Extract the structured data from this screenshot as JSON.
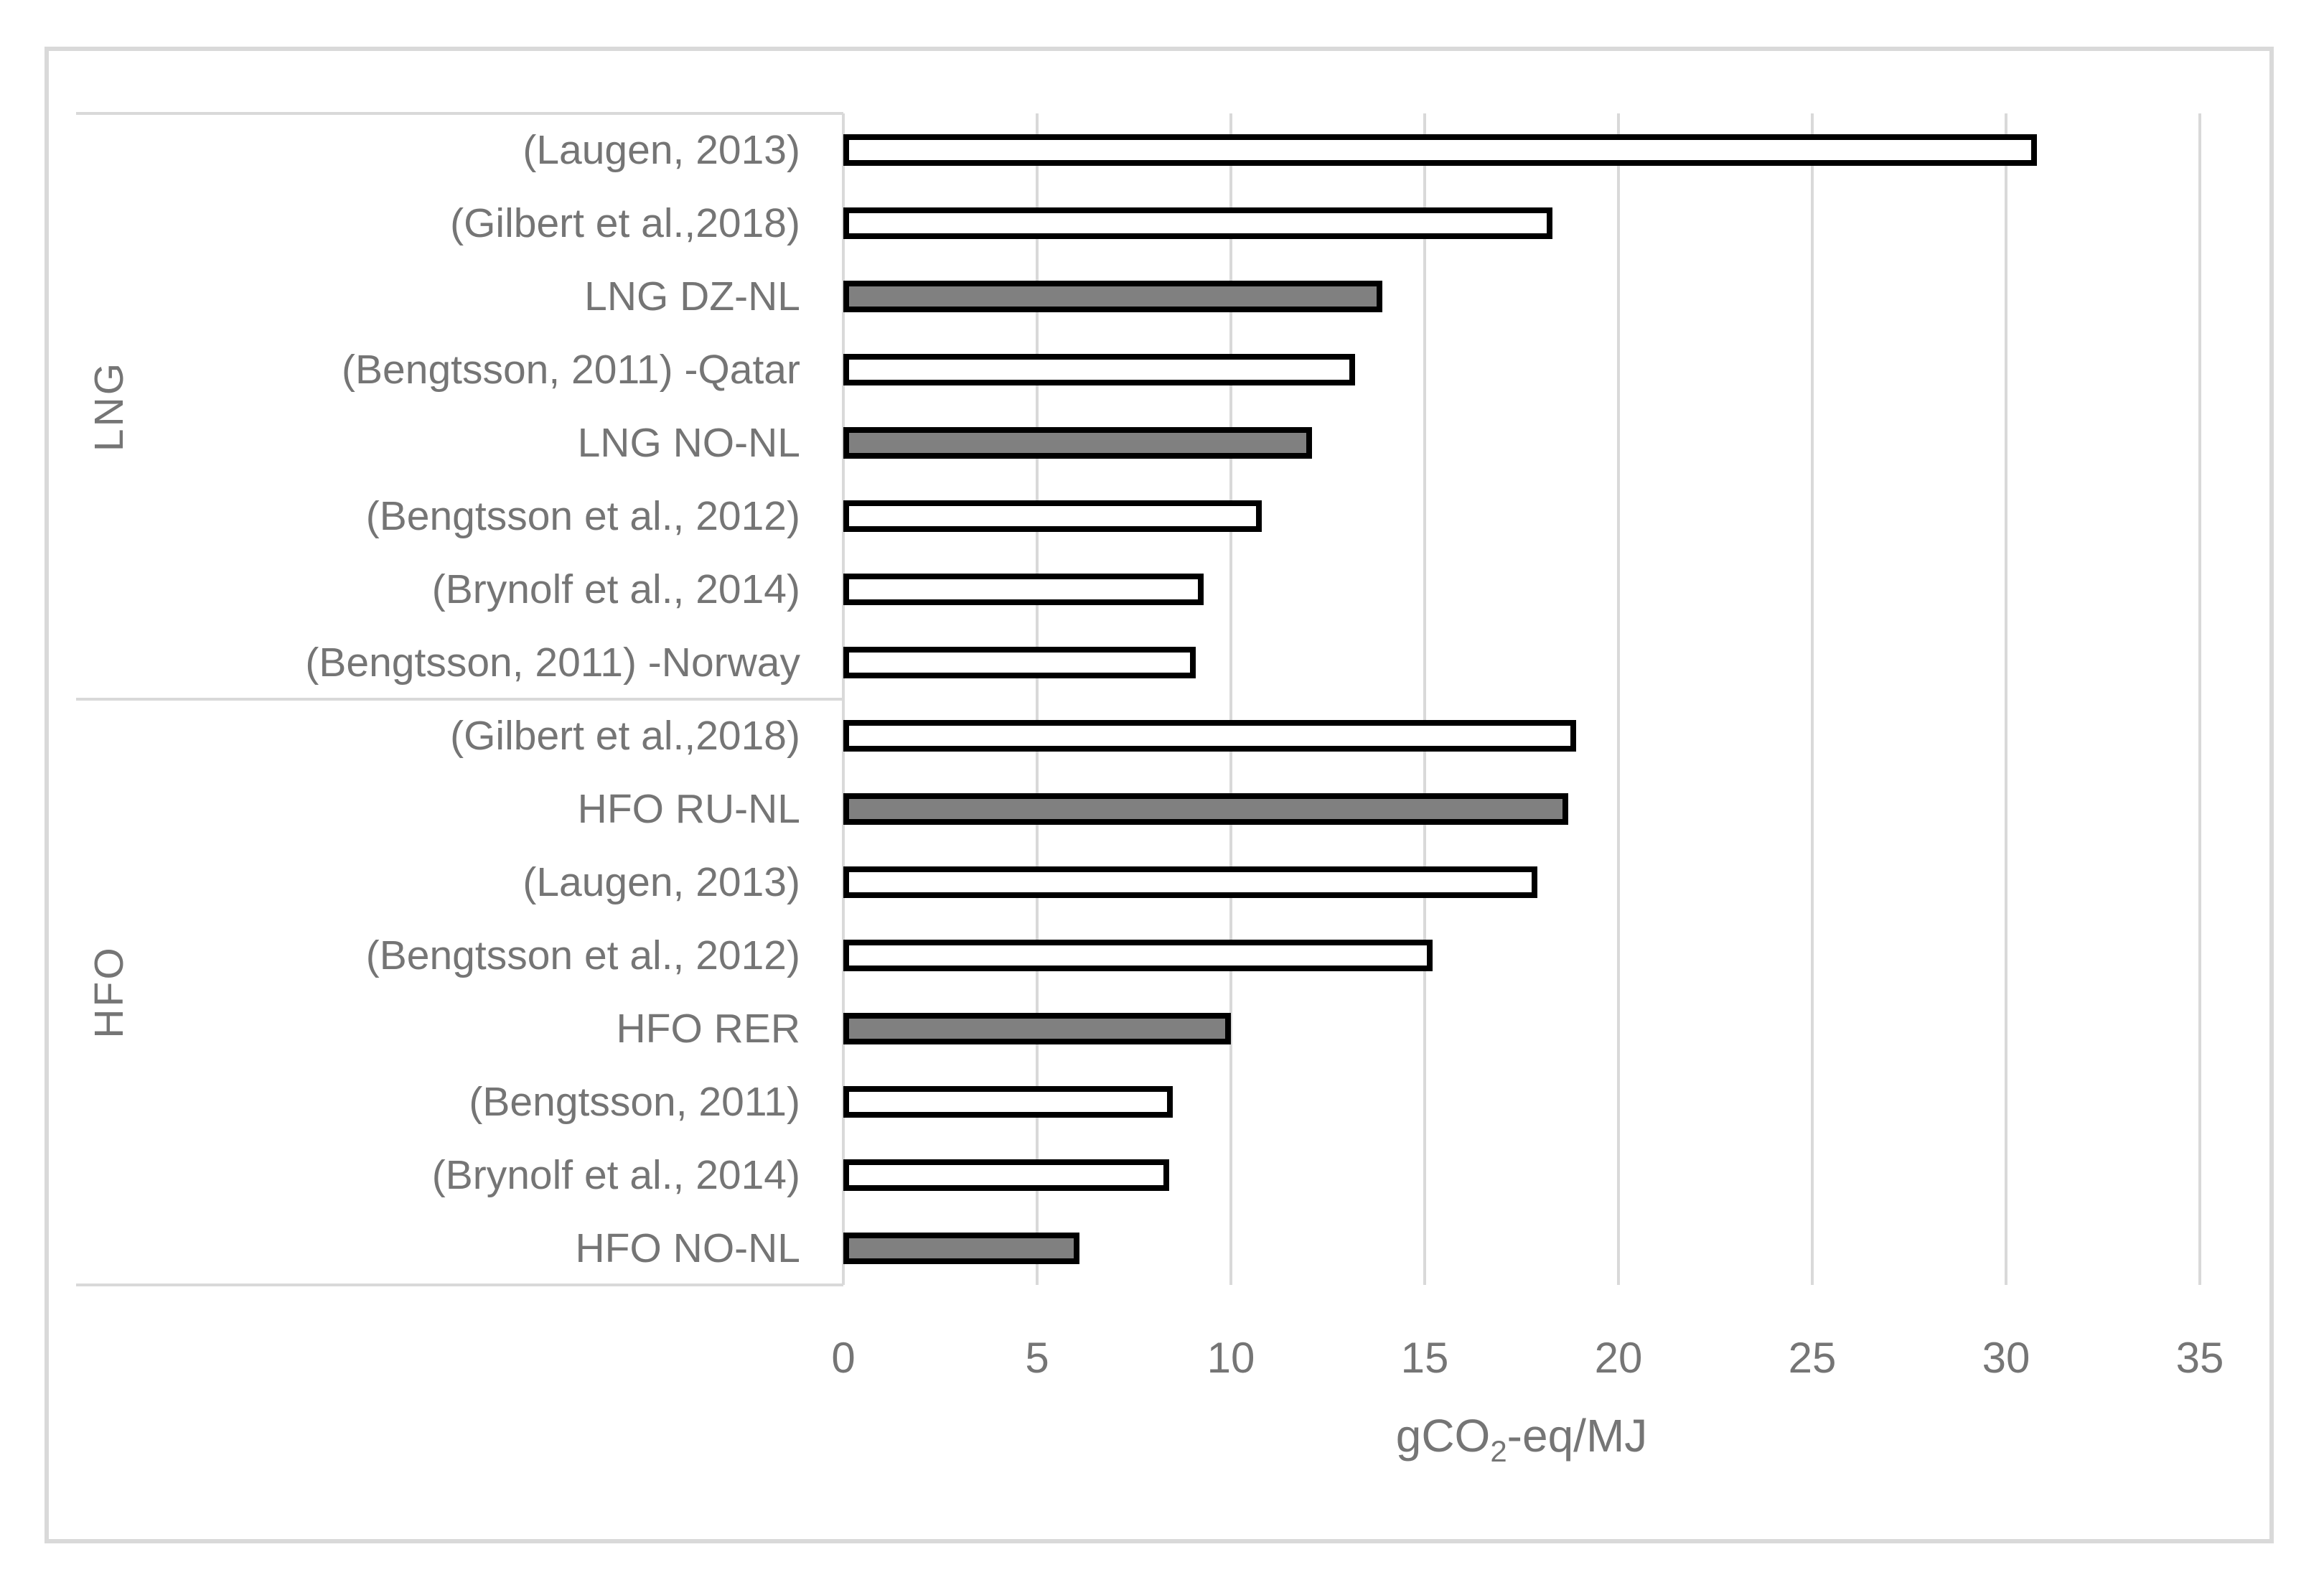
{
  "chart_data": {
    "type": "bar",
    "orientation": "horizontal",
    "title": "",
    "xlabel": "gCO2-eq/MJ",
    "xlabel_parts": {
      "prefix": "gCO",
      "sub": "2",
      "suffix": "-eq/MJ"
    },
    "xlim": [
      0,
      35
    ],
    "xticks": [
      0,
      5,
      10,
      15,
      20,
      25,
      30,
      35
    ],
    "grid": "vertical-gridlines-on",
    "legend": null,
    "groups": [
      {
        "label": "LNG",
        "rows": [
          {
            "label": "(Laugen, 2013)",
            "value": 30.8,
            "highlighted": false
          },
          {
            "label": "(Gilbert et al.,2018)",
            "value": 18.3,
            "highlighted": false
          },
          {
            "label": "LNG DZ-NL",
            "value": 13.9,
            "highlighted": true
          },
          {
            "label": "(Bengtsson, 2011) -Qatar",
            "value": 13.2,
            "highlighted": false
          },
          {
            "label": "LNG NO-NL",
            "value": 12.1,
            "highlighted": true
          },
          {
            "label": "(Bengtsson et al., 2012)",
            "value": 10.8,
            "highlighted": false
          },
          {
            "label": "(Brynolf et al., 2014)",
            "value": 9.3,
            "highlighted": false
          },
          {
            "label": "(Bengtsson, 2011) -Norway",
            "value": 9.1,
            "highlighted": false
          }
        ]
      },
      {
        "label": "HFO",
        "rows": [
          {
            "label": "(Gilbert et al.,2018)",
            "value": 18.9,
            "highlighted": false
          },
          {
            "label": "HFO RU-NL",
            "value": 18.7,
            "highlighted": true
          },
          {
            "label": "(Laugen, 2013)",
            "value": 17.9,
            "highlighted": false
          },
          {
            "label": "(Bengtsson et al., 2012)",
            "value": 15.2,
            "highlighted": false
          },
          {
            "label": "HFO RER",
            "value": 10.0,
            "highlighted": true
          },
          {
            "label": "(Bengtsson, 2011)",
            "value": 8.5,
            "highlighted": false
          },
          {
            "label": "(Brynolf et al., 2014)",
            "value": 8.4,
            "highlighted": false
          },
          {
            "label": "HFO NO-NL",
            "value": 6.1,
            "highlighted": true
          }
        ]
      }
    ],
    "bar_styles": {
      "default_fill": "#ffffff",
      "highlight_fill": "#808080",
      "border": "#000000"
    },
    "colors": {
      "gridline": "#d9d9d9",
      "frame": "#d9d9d9",
      "text": "#757575",
      "background": "#ffffff"
    }
  }
}
